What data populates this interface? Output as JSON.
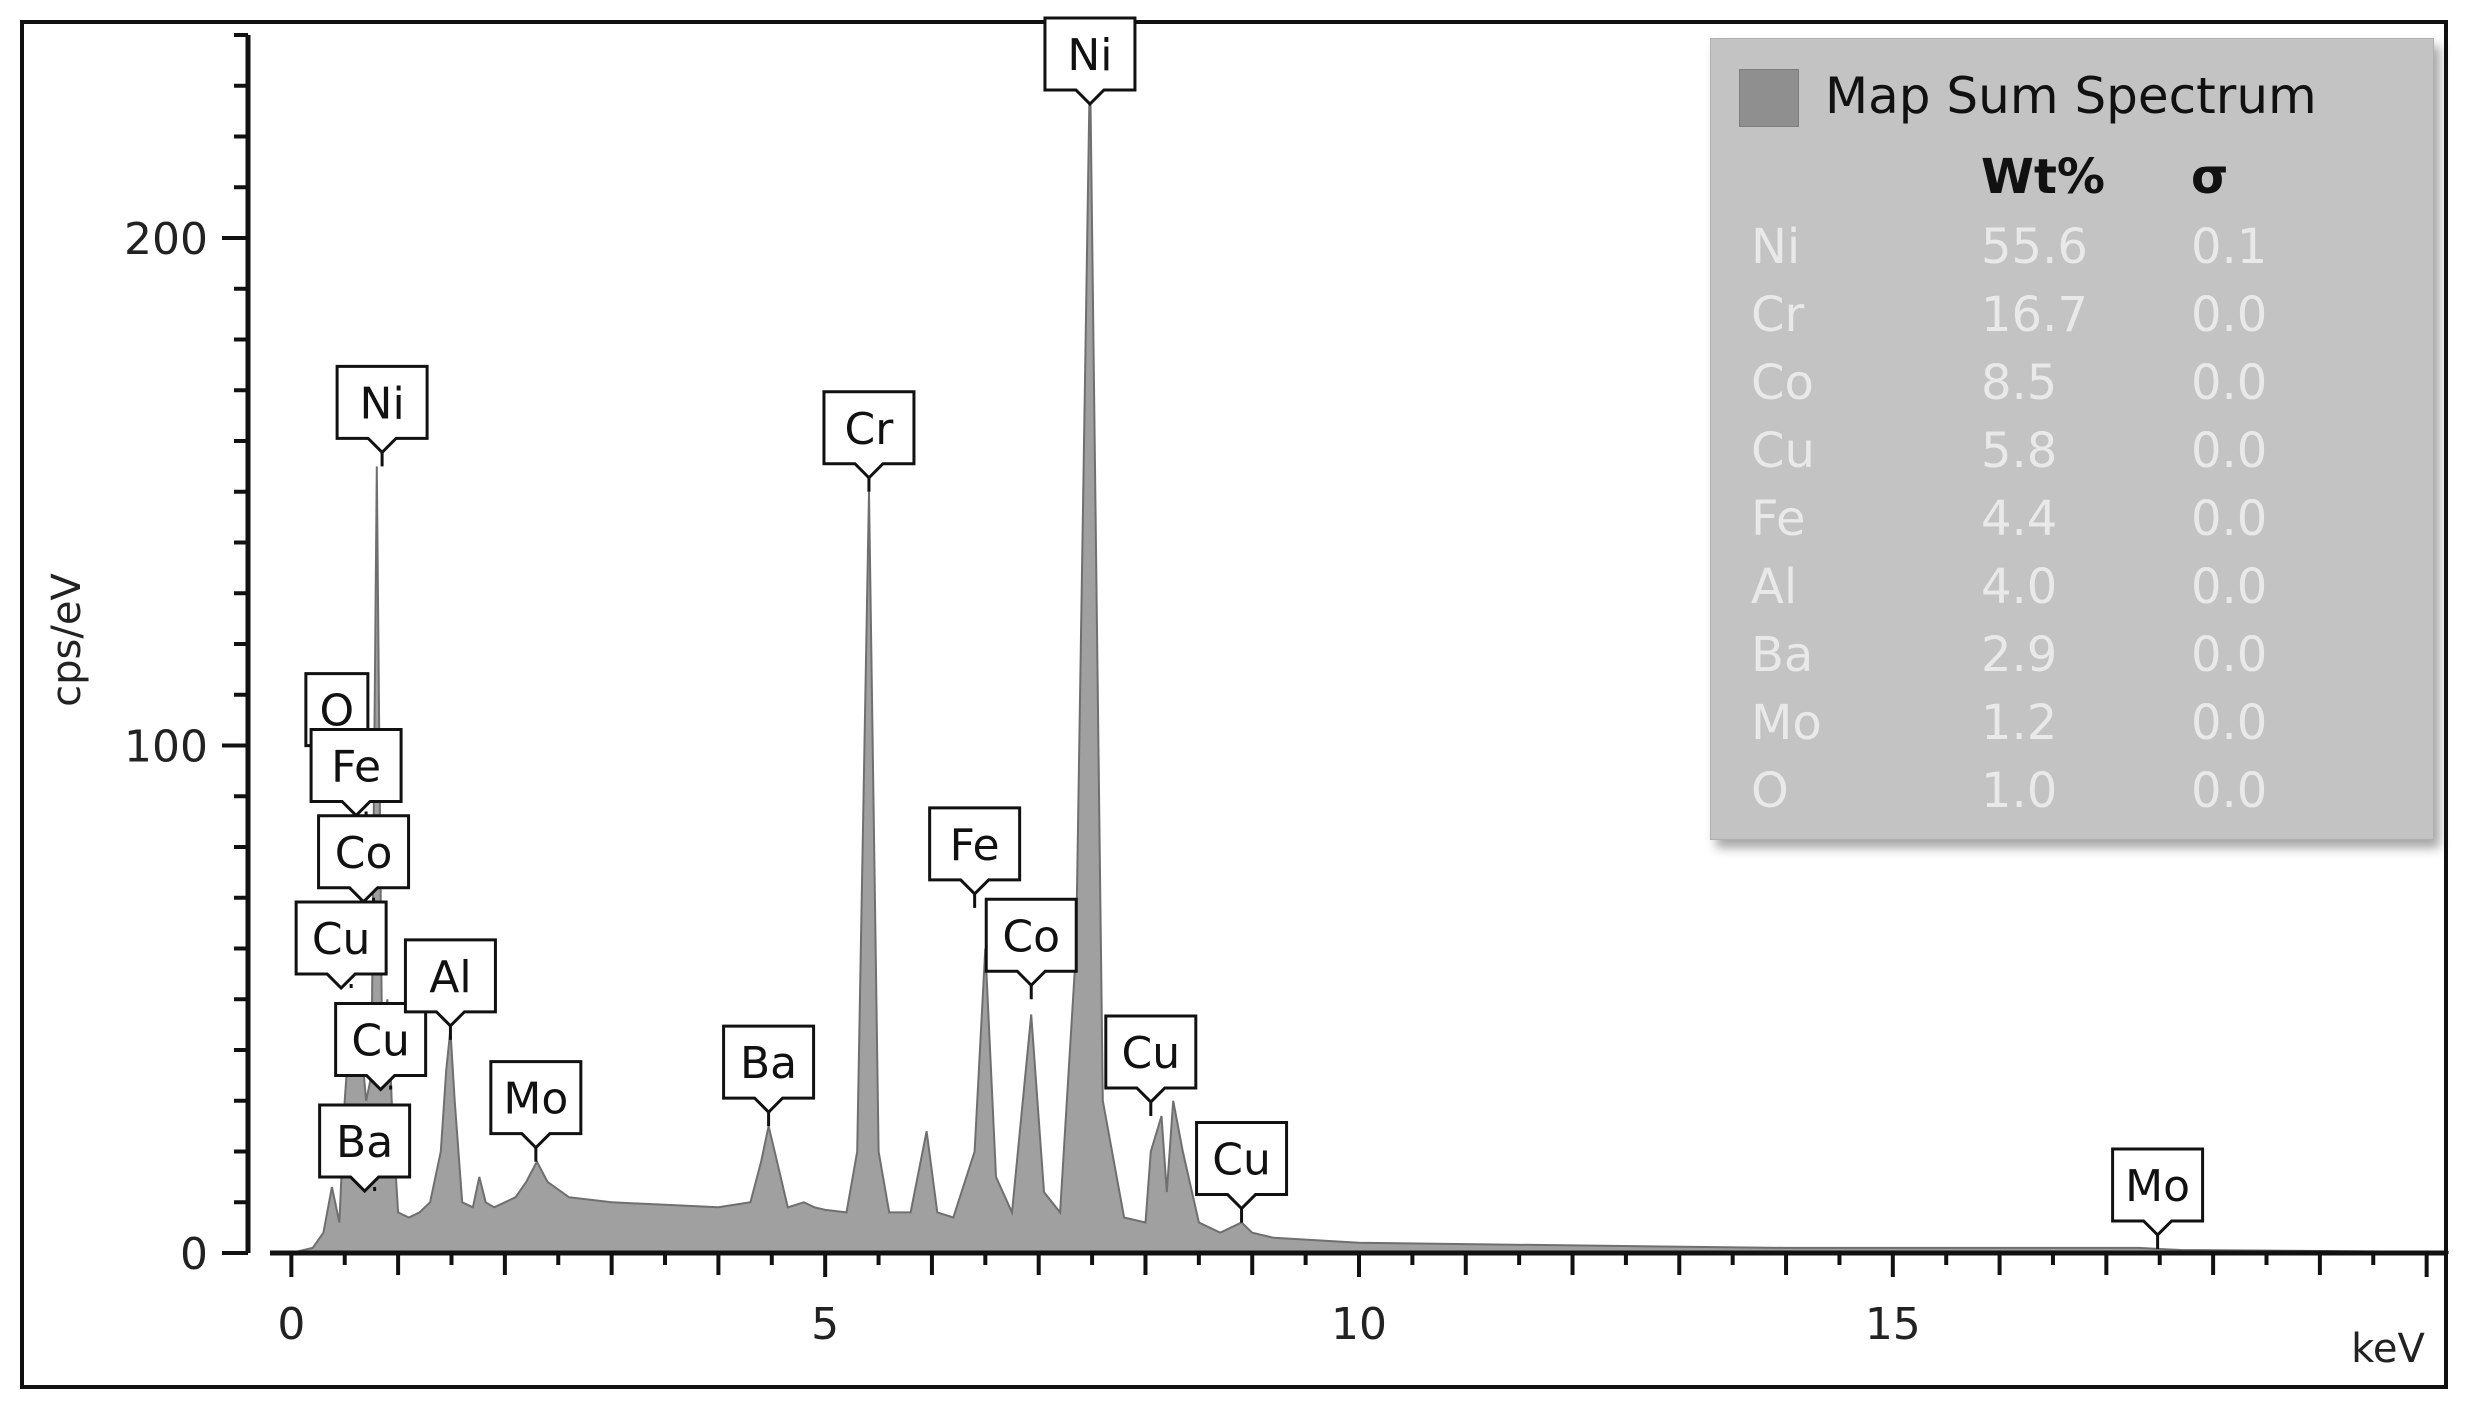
{
  "chart_data": {
    "type": "line",
    "title": "",
    "xlabel": "keV",
    "ylabel": "cps/eV",
    "xlim": [
      -0.2,
      20.2
    ],
    "ylim": [
      0,
      240
    ],
    "x_ticks": [
      0,
      5,
      10,
      15
    ],
    "y_ticks": [
      0,
      100,
      200
    ],
    "grid": false,
    "series": [
      {
        "name": "Map Sum Spectrum",
        "color": "#8f8f8f",
        "x": [
          0.0,
          0.2,
          0.3,
          0.38,
          0.45,
          0.5,
          0.55,
          0.6,
          0.65,
          0.7,
          0.75,
          0.8,
          0.85,
          0.9,
          0.95,
          1.0,
          1.1,
          1.2,
          1.3,
          1.4,
          1.45,
          1.49,
          1.53,
          1.6,
          1.7,
          1.76,
          1.82,
          1.9,
          2.0,
          2.1,
          2.2,
          2.3,
          2.4,
          2.6,
          2.8,
          3.0,
          3.5,
          4.0,
          4.3,
          4.4,
          4.47,
          4.55,
          4.65,
          4.8,
          4.9,
          5.0,
          5.2,
          5.3,
          5.41,
          5.5,
          5.6,
          5.8,
          5.95,
          6.05,
          6.2,
          6.4,
          6.5,
          6.6,
          6.75,
          6.93,
          7.05,
          7.2,
          7.35,
          7.48,
          7.6,
          7.8,
          8.0,
          8.05,
          8.15,
          8.2,
          8.26,
          8.35,
          8.5,
          8.7,
          8.9,
          9.0,
          9.2,
          10.0,
          12.0,
          14.0,
          16.0,
          17.3,
          17.48,
          17.7,
          19.0,
          20.2
        ],
        "y": [
          0,
          1,
          4,
          13,
          6,
          30,
          45,
          35,
          42,
          30,
          35,
          155,
          40,
          50,
          25,
          8,
          7,
          8,
          10,
          20,
          36,
          44,
          30,
          10,
          9,
          15,
          10,
          9,
          10,
          11,
          14,
          18,
          14,
          11,
          10.5,
          10,
          9.5,
          9,
          10,
          18,
          25,
          18,
          9,
          10,
          9,
          8.5,
          8,
          20,
          150,
          20,
          8,
          8,
          24,
          8,
          7,
          20,
          60,
          15,
          8,
          47,
          12,
          8,
          60,
          235,
          30,
          7,
          6,
          20,
          27,
          12,
          30,
          20,
          6,
          4,
          6,
          4,
          3,
          2,
          1.5,
          1,
          1,
          1,
          0.8,
          0.6,
          0.4,
          0.2
        ]
      }
    ],
    "peak_labels": [
      {
        "text": "O",
        "x": 0.52,
        "y": 98
      },
      {
        "text": "Fe",
        "x": 0.7,
        "y": 87
      },
      {
        "text": "Co",
        "x": 0.77,
        "y": 70
      },
      {
        "text": "Cu",
        "x": 0.56,
        "y": 53
      },
      {
        "text": "Ba",
        "x": 0.78,
        "y": 13
      },
      {
        "text": "Cu",
        "x": 0.93,
        "y": 33
      },
      {
        "text": "Ni",
        "x": 0.85,
        "y": 155
      },
      {
        "text": "Al",
        "x": 1.49,
        "y": 42
      },
      {
        "text": "Mo",
        "x": 2.29,
        "y": 18
      },
      {
        "text": "Ba",
        "x": 4.47,
        "y": 25
      },
      {
        "text": "Cr",
        "x": 5.41,
        "y": 150
      },
      {
        "text": "Fe",
        "x": 6.4,
        "y": 68
      },
      {
        "text": "Co",
        "x": 6.93,
        "y": 50
      },
      {
        "text": "Ni",
        "x": 7.48,
        "y": 235
      },
      {
        "text": "Cu",
        "x": 8.05,
        "y": 27
      },
      {
        "text": "Cu",
        "x": 8.9,
        "y": 6
      },
      {
        "text": "Mo",
        "x": 17.48,
        "y": 0.8
      }
    ]
  },
  "legend": {
    "title": "Map Sum Spectrum",
    "header_wt": "Wt%",
    "header_sigma": "σ",
    "rows": [
      {
        "element": "Ni",
        "wt": "55.6",
        "sigma": "0.1"
      },
      {
        "element": "Cr",
        "wt": "16.7",
        "sigma": "0.0"
      },
      {
        "element": "Co",
        "wt": "8.5",
        "sigma": "0.0"
      },
      {
        "element": "Cu",
        "wt": "5.8",
        "sigma": "0.0"
      },
      {
        "element": "Fe",
        "wt": "4.4",
        "sigma": "0.0"
      },
      {
        "element": "Al",
        "wt": "4.0",
        "sigma": "0.0"
      },
      {
        "element": "Ba",
        "wt": "2.9",
        "sigma": "0.0"
      },
      {
        "element": "Mo",
        "wt": "1.2",
        "sigma": "0.0"
      },
      {
        "element": "O",
        "wt": "1.0",
        "sigma": "0.0"
      }
    ]
  }
}
